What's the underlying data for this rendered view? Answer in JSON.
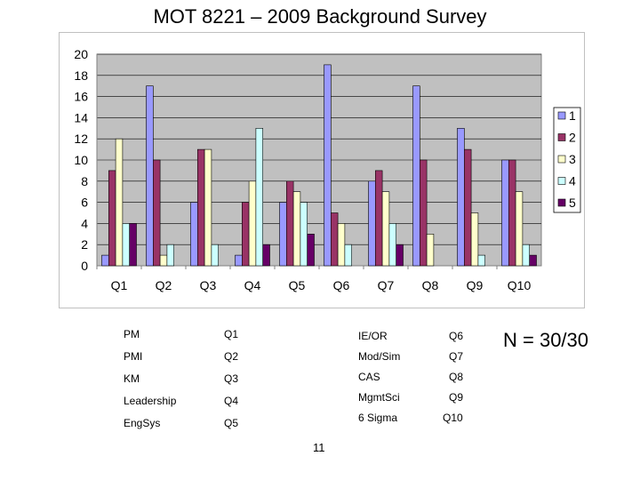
{
  "slide": {
    "title": "MOT 8221 – 2009 Background Survey",
    "n_label": "N = 30/30",
    "page_number": "11"
  },
  "chart_data": {
    "type": "bar",
    "categories": [
      "Q1",
      "Q2",
      "Q3",
      "Q4",
      "Q5",
      "Q6",
      "Q7",
      "Q8",
      "Q9",
      "Q10"
    ],
    "series": [
      {
        "name": "1",
        "color": "#9999ff",
        "values": [
          1,
          17,
          6,
          1,
          6,
          19,
          8,
          17,
          13,
          10
        ]
      },
      {
        "name": "2",
        "color": "#993366",
        "values": [
          9,
          10,
          11,
          6,
          8,
          5,
          9,
          10,
          11,
          10
        ]
      },
      {
        "name": "3",
        "color": "#ffffcc",
        "values": [
          12,
          1,
          11,
          8,
          7,
          4,
          7,
          3,
          5,
          7
        ]
      },
      {
        "name": "4",
        "color": "#ccffff",
        "values": [
          4,
          2,
          2,
          13,
          6,
          2,
          4,
          0,
          1,
          2
        ]
      },
      {
        "name": "5",
        "color": "#660066",
        "values": [
          4,
          0,
          0,
          2,
          3,
          0,
          2,
          0,
          0,
          1
        ]
      }
    ],
    "ylim": [
      0,
      20
    ],
    "yticks": [
      "0",
      "2",
      "4",
      "6",
      "8",
      "10",
      "12",
      "14",
      "16",
      "18",
      "20"
    ],
    "grid": true,
    "legend": "right",
    "plot_background": "#c0c0c0",
    "title": "",
    "xlabel": "",
    "ylabel": ""
  },
  "mapping": {
    "left": [
      {
        "topic": "PM",
        "question": "Q1"
      },
      {
        "topic": "PMI",
        "question": "Q2"
      },
      {
        "topic": "KM",
        "question": "Q3"
      },
      {
        "topic": "Leadership",
        "question": "Q4"
      },
      {
        "topic": "EngSys",
        "question": "Q5"
      }
    ],
    "right": [
      {
        "topic": "IE/OR",
        "question": "Q6"
      },
      {
        "topic": "Mod/Sim",
        "question": "Q7"
      },
      {
        "topic": "CAS",
        "question": "Q8"
      },
      {
        "topic": "MgmtSci",
        "question": "Q9"
      },
      {
        "topic": "6 Sigma",
        "question": "Q10"
      }
    ]
  }
}
